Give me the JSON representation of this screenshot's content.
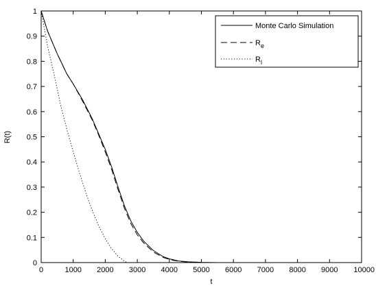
{
  "chart_data": {
    "type": "line",
    "title": "",
    "xlabel": "t",
    "ylabel": "R(t)",
    "xlim": [
      0,
      10000
    ],
    "ylim": [
      0,
      1
    ],
    "grid": false,
    "legend_position": "top-right",
    "x_ticks": [
      0,
      1000,
      2000,
      3000,
      4000,
      5000,
      6000,
      7000,
      8000,
      9000,
      10000
    ],
    "x_tick_labels": [
      "0",
      "1000",
      "2000",
      "3000",
      "4000",
      "5000",
      "6000",
      "7000",
      "8000",
      "9000",
      "10000"
    ],
    "y_ticks": [
      0,
      0.1,
      0.2,
      0.3,
      0.4,
      0.5,
      0.6,
      0.7,
      0.8,
      0.9,
      1
    ],
    "y_tick_labels": [
      "0",
      "0.1",
      "0.2",
      "0.3",
      "0.4",
      "0.5",
      "0.6",
      "0.7",
      "0.8",
      "0.9",
      "1"
    ],
    "series": [
      {
        "name": "Monte Carlo Simulation",
        "style": "solid",
        "color": "#000000",
        "x": [
          0,
          200,
          500,
          800,
          1000,
          1300,
          1600,
          1800,
          2000,
          2200,
          2400,
          2600,
          2800,
          3000,
          3200,
          3500,
          3800,
          4000,
          4300,
          4600,
          5000,
          5500,
          6000,
          7000,
          8000,
          9000,
          10000
        ],
        "y": [
          1.0,
          0.92,
          0.83,
          0.75,
          0.71,
          0.645,
          0.57,
          0.51,
          0.45,
          0.38,
          0.3,
          0.225,
          0.165,
          0.12,
          0.085,
          0.048,
          0.024,
          0.015,
          0.006,
          0.003,
          0.001,
          0.0,
          0.0,
          0.0,
          0.0,
          0.0,
          0.0
        ]
      },
      {
        "name": "R_e",
        "style": "dashed",
        "color": "#000000",
        "x": [
          0,
          200,
          500,
          800,
          1000,
          1300,
          1600,
          1800,
          2000,
          2200,
          2400,
          2600,
          2800,
          3000,
          3200,
          3500,
          3800,
          4000,
          4300,
          4600,
          5000,
          5500,
          6000,
          7000,
          8000,
          9000,
          10000
        ],
        "y": [
          1.0,
          0.92,
          0.83,
          0.75,
          0.71,
          0.64,
          0.565,
          0.505,
          0.44,
          0.37,
          0.29,
          0.215,
          0.155,
          0.11,
          0.078,
          0.042,
          0.021,
          0.012,
          0.005,
          0.002,
          0.0,
          0.0,
          0.0,
          0.0,
          0.0,
          0.0,
          0.0
        ]
      },
      {
        "name": "R_l",
        "style": "dotted",
        "color": "#000000",
        "x": [
          0,
          200,
          400,
          600,
          800,
          1000,
          1200,
          1400,
          1600,
          1800,
          2000,
          2200,
          2400,
          2600,
          2700
        ],
        "y": [
          1.0,
          0.86,
          0.75,
          0.63,
          0.53,
          0.44,
          0.355,
          0.275,
          0.205,
          0.145,
          0.095,
          0.055,
          0.025,
          0.005,
          0.0
        ]
      }
    ],
    "legend": [
      {
        "label": "Monte Carlo Simulation",
        "base": "Monte Carlo Simulation",
        "sub": "",
        "style": "solid"
      },
      {
        "label": "R_e",
        "base": "R",
        "sub": "e",
        "style": "dashed"
      },
      {
        "label": "R_l",
        "base": "R",
        "sub": "l",
        "style": "dotted"
      }
    ]
  }
}
